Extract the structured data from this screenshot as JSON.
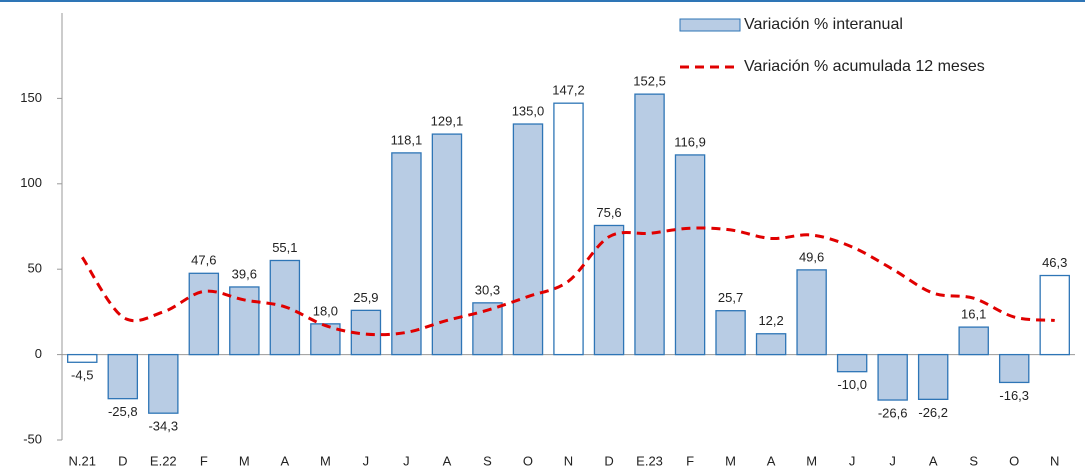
{
  "chart_data": {
    "type": "bar",
    "categories": [
      "N.21",
      "D",
      "E.22",
      "F",
      "M",
      "A",
      "M",
      "J",
      "J",
      "A",
      "S",
      "O",
      "N",
      "D",
      "E.23",
      "F",
      "M",
      "A",
      "M",
      "J",
      "J",
      "A",
      "S",
      "O",
      "N"
    ],
    "series": [
      {
        "name": "Variación % interanual",
        "type": "bar",
        "color": "#b8cce4",
        "stroke": "#2e75b6",
        "bar_colors": [
          "#ffffff",
          "#b8cce4",
          "#b8cce4",
          "#b8cce4",
          "#b8cce4",
          "#b8cce4",
          "#b8cce4",
          "#b8cce4",
          "#b8cce4",
          "#b8cce4",
          "#b8cce4",
          "#b8cce4",
          "#ffffff",
          "#b8cce4",
          "#b8cce4",
          "#b8cce4",
          "#b8cce4",
          "#b8cce4",
          "#b8cce4",
          "#b8cce4",
          "#b8cce4",
          "#b8cce4",
          "#b8cce4",
          "#b8cce4",
          "#ffffff"
        ],
        "values": [
          -4.5,
          -25.8,
          -34.3,
          47.6,
          39.6,
          55.1,
          18.0,
          25.9,
          118.1,
          129.1,
          30.3,
          135.0,
          147.2,
          75.6,
          152.5,
          116.9,
          25.7,
          12.2,
          49.6,
          -10.0,
          -26.6,
          -26.2,
          16.1,
          -16.3,
          46.3
        ],
        "value_labels": [
          "-4,5",
          "-25,8",
          "-34,3",
          "47,6",
          "39,6",
          "55,1",
          "18,0",
          "25,9",
          "118,1",
          "129,1",
          "30,3",
          "135,0",
          "147,2",
          "75,6",
          "152,5",
          "116,9",
          "25,7",
          "12,2",
          "49,6",
          "-10,0",
          "-26,6",
          "-26,2",
          "16,1",
          "-16,3",
          "46,3"
        ]
      },
      {
        "name": "Variación % acumulada 12 meses",
        "type": "line",
        "color": "#e00000",
        "values": [
          57,
          22,
          25,
          37,
          32,
          28,
          17,
          12,
          13,
          20,
          26,
          34,
          43,
          69,
          71,
          74,
          73,
          68,
          70,
          63,
          50,
          36,
          33,
          22,
          20
        ]
      }
    ],
    "ylim": [
      -50,
      200
    ],
    "yticks": [
      -50,
      0,
      50,
      100,
      150
    ],
    "legend": "top-right"
  }
}
